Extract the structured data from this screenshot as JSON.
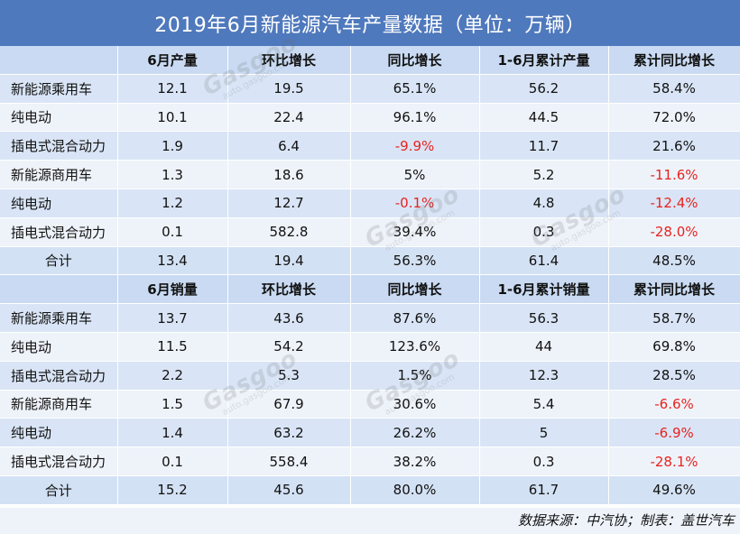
{
  "title": "2019年6月新能源汽车产量数据（单位：万辆）",
  "production": {
    "headers": [
      "",
      "6月产量",
      "环比增长",
      "同比增长",
      "1-6月累计产量",
      "累计同比增长"
    ],
    "rows": [
      [
        "新能源乘用车",
        "12.1",
        "19.5",
        "65.1%",
        "56.2",
        "58.4%"
      ],
      [
        "纯电动",
        "10.1",
        "22.4",
        "96.1%",
        "44.5",
        "72.0%"
      ],
      [
        "插电式混合动力",
        "1.9",
        "6.4",
        "-9.9%",
        "11.7",
        "21.6%"
      ],
      [
        "新能源商用车",
        "1.3",
        "18.6",
        "5%",
        "5.2",
        "-11.6%"
      ],
      [
        "纯电动",
        "1.2",
        "12.7",
        "-0.1%",
        "4.8",
        "-12.4%"
      ],
      [
        "插电式混合动力",
        "0.1",
        "582.8",
        "39.4%",
        "0.3",
        "-28.0%"
      ],
      [
        "合计",
        "13.4",
        "19.4",
        "56.3%",
        "61.4",
        "48.5%"
      ]
    ]
  },
  "sales": {
    "headers": [
      "",
      "6月销量",
      "环比增长",
      "同比增长",
      "1-6月累计销量",
      "累计同比增长"
    ],
    "rows": [
      [
        "新能源乘用车",
        "13.7",
        "43.6",
        "87.6%",
        "56.3",
        "58.7%"
      ],
      [
        "纯电动",
        "11.5",
        "54.2",
        "123.6%",
        "44",
        "69.8%"
      ],
      [
        "插电式混合动力",
        "2.2",
        "5.3",
        "1.5%",
        "12.3",
        "28.5%"
      ],
      [
        "新能源商用车",
        "1.5",
        "67.9",
        "30.6%",
        "5.4",
        "-6.6%"
      ],
      [
        "纯电动",
        "1.4",
        "63.2",
        "26.2%",
        "5",
        "-6.9%"
      ],
      [
        "插电式混合动力",
        "0.1",
        "558.4",
        "38.2%",
        "0.3",
        "-28.1%"
      ],
      [
        "合计",
        "15.2",
        "45.6",
        "80.0%",
        "61.7",
        "49.6%"
      ]
    ]
  },
  "source_note": "数据来源：中汽协；制表：盖世汽车",
  "watermark": {
    "brand": "Gasgoo",
    "cn": "盖世汽车",
    "url": "auto.gasgoo.com"
  },
  "colors": {
    "title_bg": "#4f79bd",
    "header_bg": "#c9daf2",
    "row_odd": "#d9e5f6",
    "row_even": "#eef3fa",
    "negative": "#e8231f"
  }
}
